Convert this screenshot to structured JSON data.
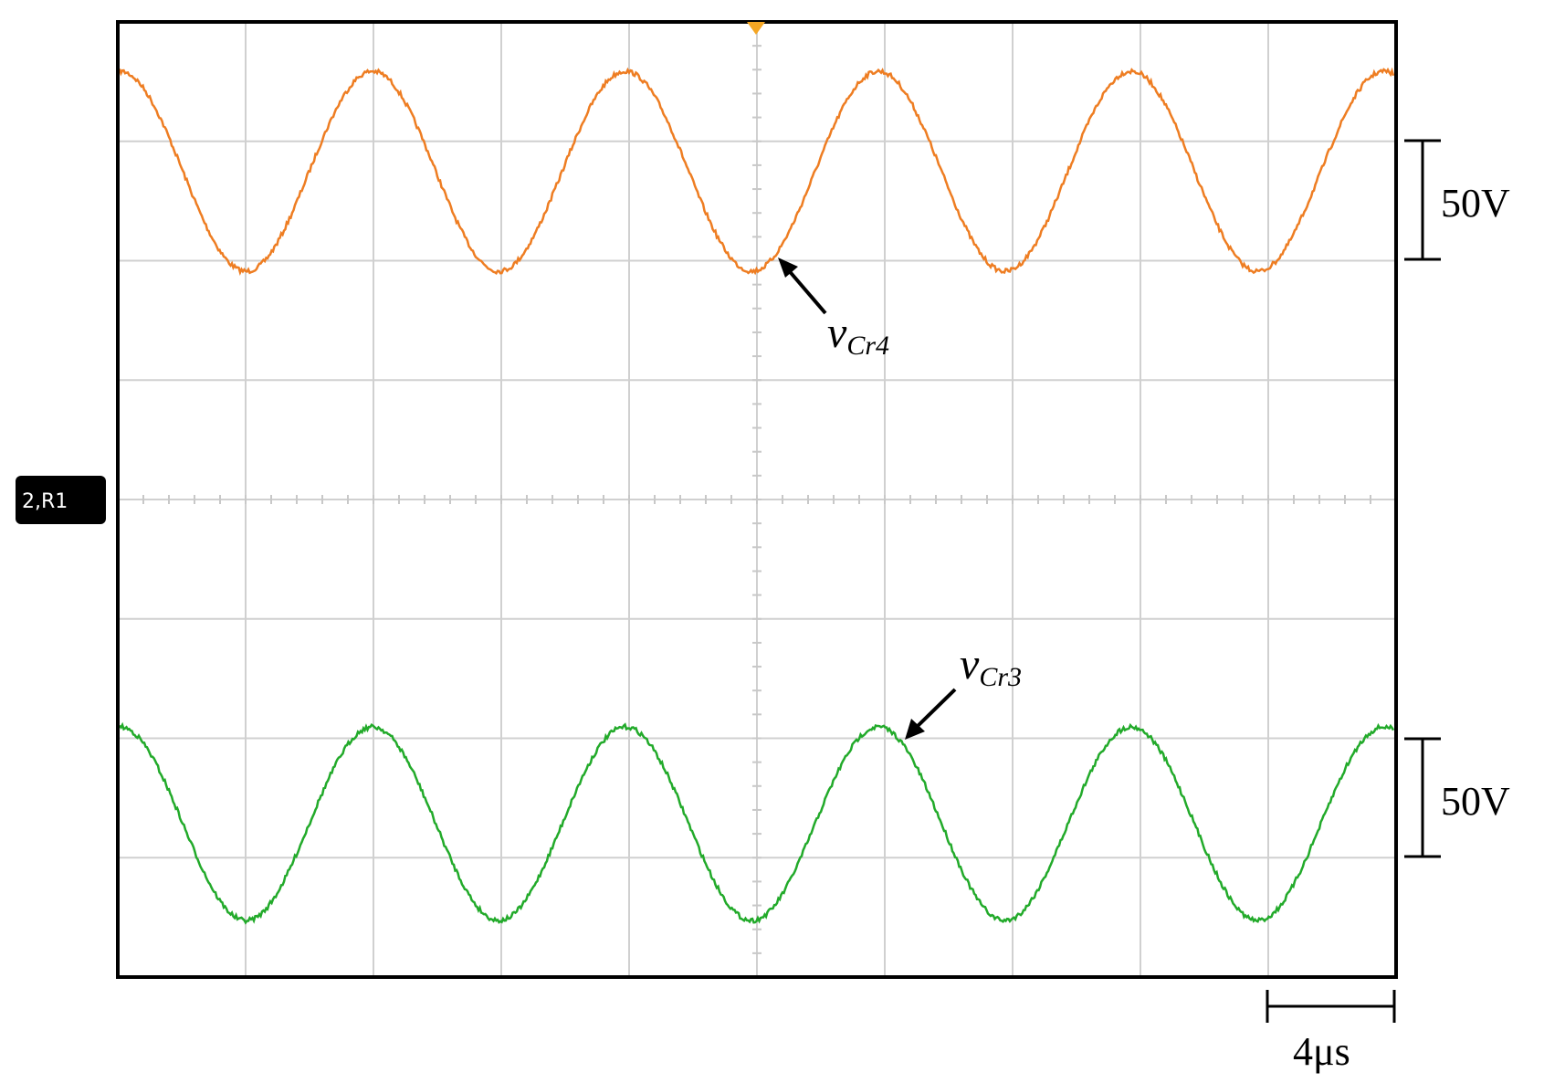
{
  "scales": {
    "ch_top": "50V",
    "ch_bottom": "50V",
    "time": "4μs"
  },
  "annotations": {
    "top": {
      "symbol": "v",
      "subscript": "Cr4"
    },
    "bottom": {
      "symbol": "v",
      "subscript": "Cr3"
    }
  },
  "channel_marker": "2,R1"
}
